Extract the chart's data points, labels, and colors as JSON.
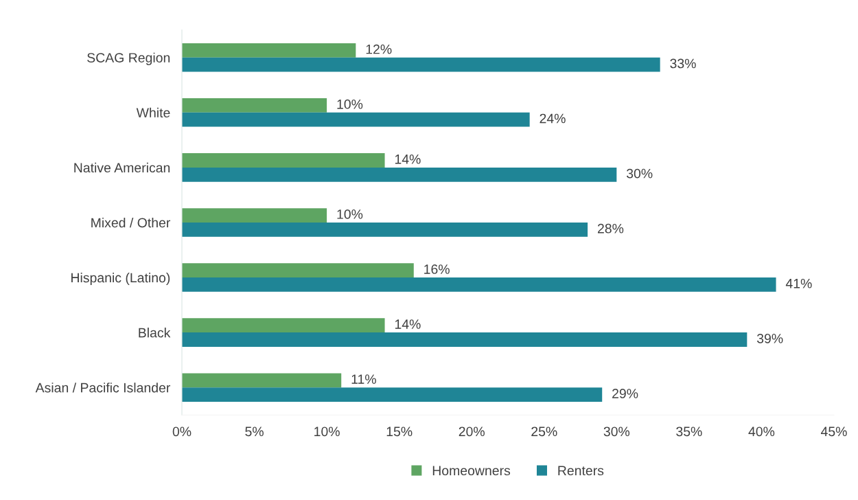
{
  "chart_data": {
    "type": "bar",
    "orientation": "horizontal",
    "categories": [
      "SCAG Region",
      "White",
      "Native American",
      "Mixed / Other",
      "Hispanic (Latino)",
      "Black",
      "Asian / Pacific Islander"
    ],
    "series": [
      {
        "name": "Homeowners",
        "color": "#5ea562",
        "values": [
          12,
          10,
          14,
          10,
          16,
          14,
          11
        ],
        "value_labels": [
          "12%",
          "10%",
          "14%",
          "10%",
          "16%",
          "14%",
          "11%"
        ]
      },
      {
        "name": "Renters",
        "color": "#1f8596",
        "values": [
          33,
          24,
          30,
          28,
          41,
          39,
          29
        ],
        "value_labels": [
          "33%",
          "24%",
          "30%",
          "28%",
          "41%",
          "39%",
          "29%"
        ]
      }
    ],
    "xlim": [
      0,
      45
    ],
    "xticks": [
      {
        "value": 0,
        "label": "0%"
      },
      {
        "value": 5,
        "label": "5%"
      },
      {
        "value": 10,
        "label": "10%"
      },
      {
        "value": 15,
        "label": "15%"
      },
      {
        "value": 20,
        "label": "20%"
      },
      {
        "value": 25,
        "label": "25%"
      },
      {
        "value": 30,
        "label": "30%"
      },
      {
        "value": 35,
        "label": "35%"
      },
      {
        "value": 40,
        "label": "40%"
      },
      {
        "value": 45,
        "label": "45%"
      }
    ],
    "grid": false,
    "legend": "bottom"
  }
}
